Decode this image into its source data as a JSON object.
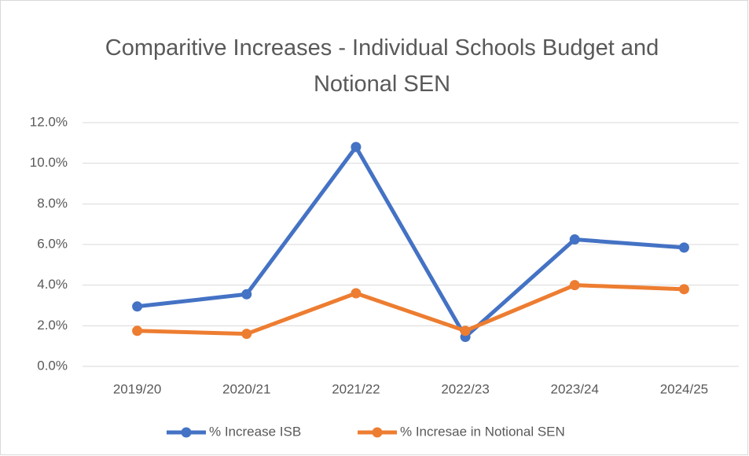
{
  "chart_data": {
    "type": "line",
    "title": "Comparitive Increases - Individual Schools Budget and Notional SEN",
    "categories": [
      "2019/20",
      "2020/21",
      "2021/22",
      "2022/23",
      "2023/24",
      "2024/25"
    ],
    "series": [
      {
        "name": "% Increase ISB",
        "color": "#4472c4",
        "values": [
          2.95,
          3.55,
          10.8,
          1.45,
          6.25,
          5.85
        ]
      },
      {
        "name": "% Incresae in Notional SEN",
        "color": "#ed7d31",
        "values": [
          1.75,
          1.6,
          3.6,
          1.75,
          4.0,
          3.8
        ]
      }
    ],
    "ylim": [
      0,
      12
    ],
    "yticks": [
      {
        "value": 0,
        "label": "0.0%"
      },
      {
        "value": 2,
        "label": "2.0%"
      },
      {
        "value": 4,
        "label": "4.0%"
      },
      {
        "value": 6,
        "label": "6.0%"
      },
      {
        "value": 8,
        "label": "8.0%"
      },
      {
        "value": 10,
        "label": "10.0%"
      },
      {
        "value": 12,
        "label": "12.0%"
      }
    ],
    "grid": true,
    "legend": "bottom"
  }
}
